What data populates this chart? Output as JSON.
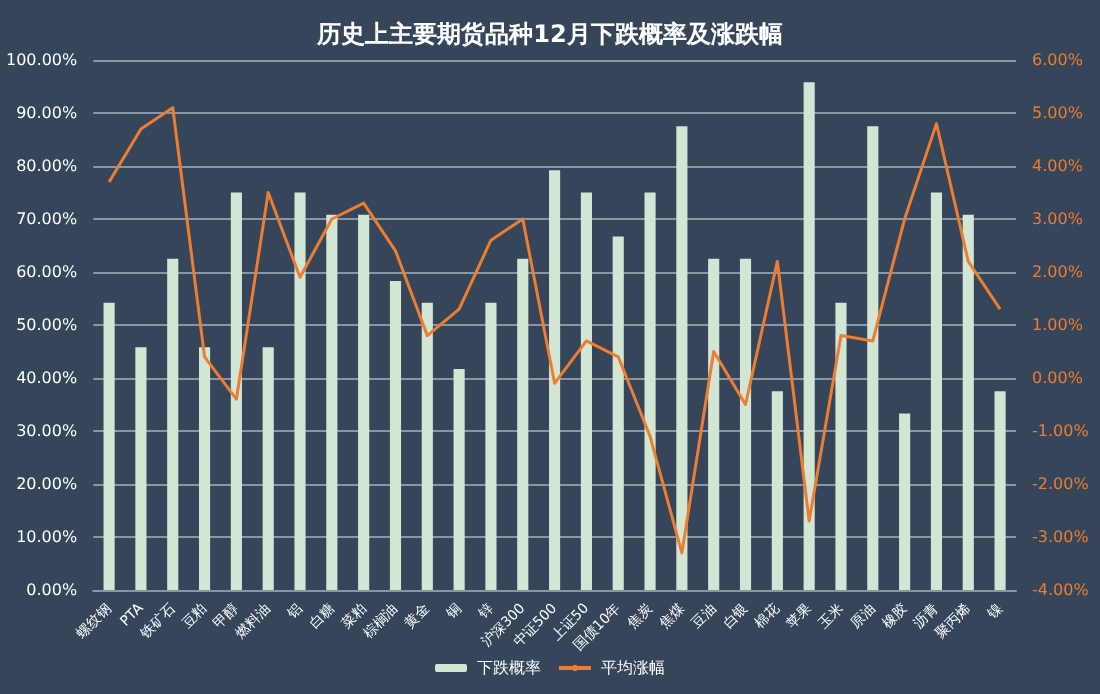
{
  "chart_data": {
    "type": "bar",
    "title": "历史上主要期货品种12月下跌概率及涨跌幅",
    "categories": [
      "螺纹钢",
      "PTA",
      "铁矿石",
      "豆粕",
      "甲醇",
      "燃料油",
      "铝",
      "白糖",
      "菜粕",
      "棕榈油",
      "黄金",
      "铜",
      "锌",
      "沪深300",
      "中证500",
      "上证50",
      "国债10年",
      "焦炭",
      "焦煤",
      "豆油",
      "白银",
      "棉花",
      "苹果",
      "玉米",
      "原油",
      "橡胶",
      "沥青",
      "聚丙烯",
      "镍"
    ],
    "series": [
      {
        "name": "下跌概率",
        "color": "#d3e6d3",
        "values": [
          54.2,
          45.8,
          62.5,
          45.8,
          75,
          45.8,
          75,
          70.8,
          70.8,
          58.3,
          54.2,
          41.7,
          54.2,
          62.5,
          79.2,
          75,
          66.7,
          75,
          87.5,
          62.5,
          62.5,
          37.5,
          95.8,
          54.2,
          87.5,
          33.3,
          75,
          70.8,
          37.5
        ]
      },
      {
        "name": "平均涨幅",
        "type": "line",
        "axis": "y2",
        "color": "#ed7d31",
        "values": [
          3.7,
          4.7,
          5.1,
          0.4,
          -0.4,
          3.5,
          1.9,
          3.0,
          3.3,
          2.4,
          0.8,
          1.3,
          2.6,
          3.0,
          -0.1,
          0.7,
          0.4,
          -1.1,
          -3.3,
          0.5,
          -0.5,
          2.2,
          -2.7,
          0.8,
          0.7,
          3.0,
          4.8,
          2.2,
          1.3
        ]
      }
    ],
    "ylim": [
      0,
      100
    ],
    "yticks": [
      {
        "value": 0,
        "label": "0.00%"
      },
      {
        "value": 10,
        "label": "10.00%"
      },
      {
        "value": 20,
        "label": "20.00%"
      },
      {
        "value": 30,
        "label": "30.00%"
      },
      {
        "value": 40,
        "label": "40.00%"
      },
      {
        "value": 50,
        "label": "50.00%"
      },
      {
        "value": 60,
        "label": "60.00%"
      },
      {
        "value": 70,
        "label": "70.00%"
      },
      {
        "value": 80,
        "label": "80.00%"
      },
      {
        "value": 90,
        "label": "90.00%"
      },
      {
        "value": 100,
        "label": "100.00%"
      }
    ],
    "y2lim": [
      -4,
      6
    ],
    "y2ticks": [
      {
        "value": -4,
        "label": "-4.00%"
      },
      {
        "value": -3,
        "label": "-3.00%"
      },
      {
        "value": -2,
        "label": "-2.00%"
      },
      {
        "value": -1,
        "label": "-1.00%"
      },
      {
        "value": 0,
        "label": "0.00%"
      },
      {
        "value": 1,
        "label": "1.00%"
      },
      {
        "value": 2,
        "label": "2.00%"
      },
      {
        "value": 3,
        "label": "3.00%"
      },
      {
        "value": 4,
        "label": "4.00%"
      },
      {
        "value": 5,
        "label": "5.00%"
      },
      {
        "value": 6,
        "label": "6.00%"
      }
    ],
    "grid": "y",
    "legend": "bottom",
    "marker": "none",
    "line_style": "solid"
  }
}
